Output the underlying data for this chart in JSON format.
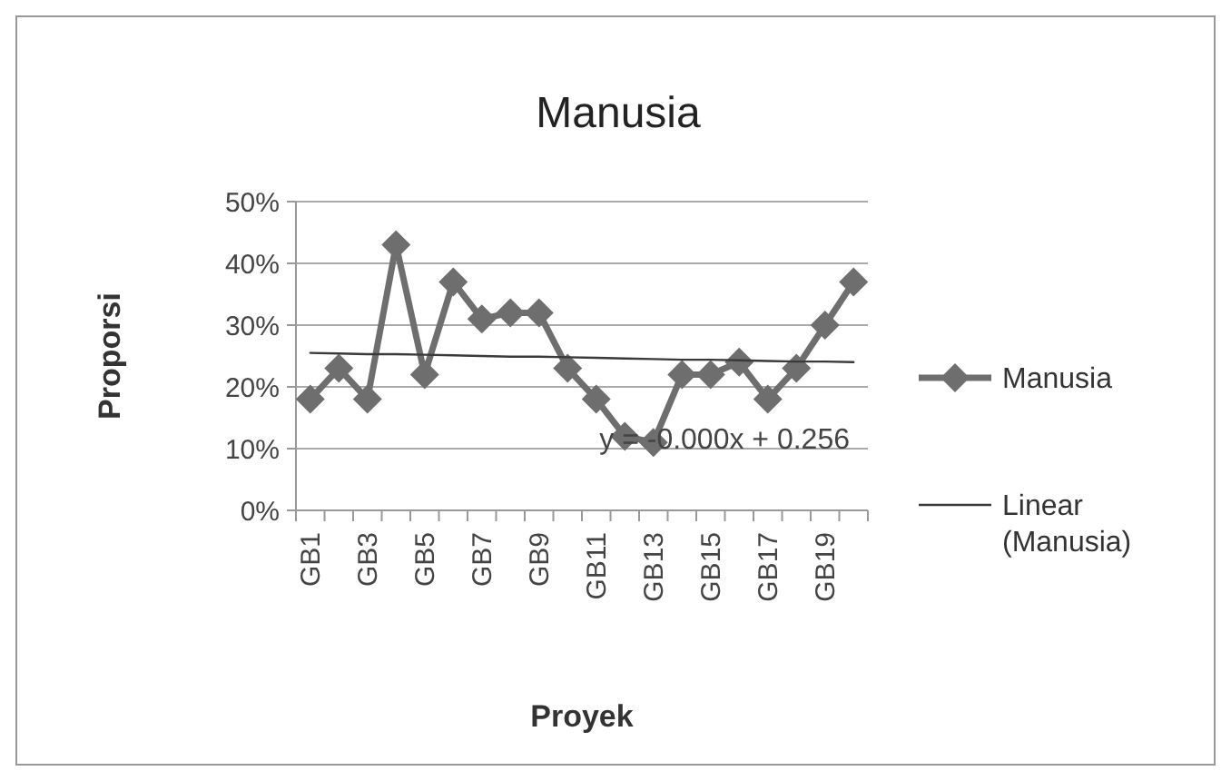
{
  "chart_data": {
    "type": "line",
    "title": "Manusia",
    "xlabel": "Proyek",
    "ylabel": "Proporsi",
    "categories": [
      "GB1",
      null,
      "GB3",
      null,
      "GB5",
      null,
      "GB7",
      null,
      "GB9",
      null,
      "GB11",
      null,
      "GB13",
      null,
      "GB15",
      null,
      "GB17",
      null,
      "GB19",
      null
    ],
    "series": [
      {
        "name": "Manusia",
        "color": "#6e6e6e",
        "marker": "diamond",
        "line_style": "solid",
        "values": [
          18,
          23,
          18,
          43,
          22,
          37,
          31,
          32,
          32,
          23,
          18,
          12,
          11,
          22,
          22,
          24,
          18,
          23,
          30,
          37
        ]
      },
      {
        "name": "Linear (Manusia)",
        "color": "#3a3a3a",
        "marker": "none",
        "line_style": "solid",
        "values": [
          25.5,
          25.4,
          25.3,
          25.3,
          25.2,
          25.1,
          25.0,
          24.9,
          24.9,
          24.8,
          24.7,
          24.6,
          24.5,
          24.4,
          24.4,
          24.3,
          24.2,
          24.1,
          24.1,
          24.0
        ]
      }
    ],
    "ylim": [
      0,
      50
    ],
    "yticks": [
      {
        "value": 0,
        "label": "0%"
      },
      {
        "value": 10,
        "label": "10%"
      },
      {
        "value": 20,
        "label": "20%"
      },
      {
        "value": 30,
        "label": "30%"
      },
      {
        "value": 40,
        "label": "40%"
      },
      {
        "value": 50,
        "label": "50%"
      }
    ],
    "grid": "y",
    "legend": "right",
    "annotations": [
      "y = -0.000x + 0.256"
    ]
  }
}
